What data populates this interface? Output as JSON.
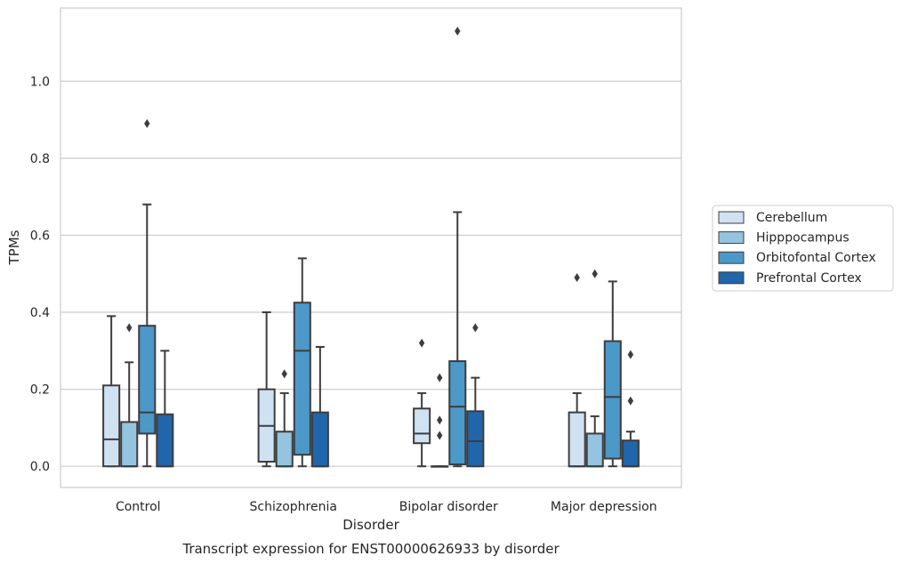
{
  "chart_data": {
    "type": "boxplot",
    "title": "",
    "caption": "Transcript expression for ENST00000626933 by disorder",
    "xlabel": "Disorder",
    "ylabel": "TPMs",
    "ylim": [
      -0.055,
      1.19
    ],
    "yticks": [
      0.0,
      0.2,
      0.4,
      0.6,
      0.8,
      1.0
    ],
    "ytick_labels": [
      "0.0",
      "0.2",
      "0.4",
      "0.6",
      "0.8",
      "1.0"
    ],
    "grid": "horizontal",
    "legend_position": "right",
    "categories": [
      "Control",
      "Schizophrenia",
      "Bipolar disorder",
      "Major depression"
    ],
    "series": [
      {
        "name": "Cerebellum",
        "color": "#d0e1f2",
        "boxes": [
          {
            "whislo": 0.0,
            "q1": 0.0,
            "med": 0.07,
            "q3": 0.21,
            "whishi": 0.39,
            "fliers": []
          },
          {
            "whislo": 0.0,
            "q1": 0.012,
            "med": 0.105,
            "q3": 0.2,
            "whishi": 0.4,
            "fliers": []
          },
          {
            "whislo": 0.0,
            "q1": 0.06,
            "med": 0.085,
            "q3": 0.15,
            "whishi": 0.19,
            "fliers": [
              0.32
            ]
          },
          {
            "whislo": 0.0,
            "q1": 0.0,
            "med": 0.0,
            "q3": 0.14,
            "whishi": 0.19,
            "fliers": [
              0.49
            ]
          }
        ]
      },
      {
        "name": "Hipppocampus",
        "color": "#94c4df",
        "boxes": [
          {
            "whislo": 0.0,
            "q1": 0.0,
            "med": 0.0,
            "q3": 0.115,
            "whishi": 0.27,
            "fliers": [
              0.36
            ]
          },
          {
            "whislo": 0.0,
            "q1": 0.0,
            "med": 0.0,
            "q3": 0.09,
            "whishi": 0.19,
            "fliers": [
              0.24
            ]
          },
          {
            "whislo": 0.0,
            "q1": 0.0,
            "med": 0.0,
            "q3": 0.0,
            "whishi": 0.0,
            "fliers": [
              0.08,
              0.12,
              0.23
            ]
          },
          {
            "whislo": 0.0,
            "q1": 0.0,
            "med": 0.0,
            "q3": 0.085,
            "whishi": 0.13,
            "fliers": [
              0.5
            ]
          }
        ]
      },
      {
        "name": "Orbitofontal Cortex",
        "color": "#4b98c9",
        "boxes": [
          {
            "whislo": 0.0,
            "q1": 0.085,
            "med": 0.14,
            "q3": 0.365,
            "whishi": 0.68,
            "fliers": [
              0.89
            ]
          },
          {
            "whislo": 0.0,
            "q1": 0.03,
            "med": 0.3,
            "q3": 0.425,
            "whishi": 0.54,
            "fliers": []
          },
          {
            "whislo": 0.0,
            "q1": 0.005,
            "med": 0.155,
            "q3": 0.273,
            "whishi": 0.66,
            "fliers": [
              1.13
            ]
          },
          {
            "whislo": 0.0,
            "q1": 0.02,
            "med": 0.18,
            "q3": 0.325,
            "whishi": 0.48,
            "fliers": []
          }
        ]
      },
      {
        "name": "Prefrontal Cortex",
        "color": "#2165ab",
        "boxes": [
          {
            "whislo": 0.0,
            "q1": 0.0,
            "med": 0.0,
            "q3": 0.135,
            "whishi": 0.3,
            "fliers": []
          },
          {
            "whislo": 0.0,
            "q1": 0.0,
            "med": 0.0,
            "q3": 0.14,
            "whishi": 0.31,
            "fliers": []
          },
          {
            "whislo": 0.0,
            "q1": 0.0,
            "med": 0.065,
            "q3": 0.143,
            "whishi": 0.23,
            "fliers": [
              0.36
            ]
          },
          {
            "whislo": 0.0,
            "q1": 0.0,
            "med": 0.0,
            "q3": 0.067,
            "whishi": 0.09,
            "fliers": [
              0.17,
              0.29
            ]
          }
        ]
      }
    ]
  }
}
